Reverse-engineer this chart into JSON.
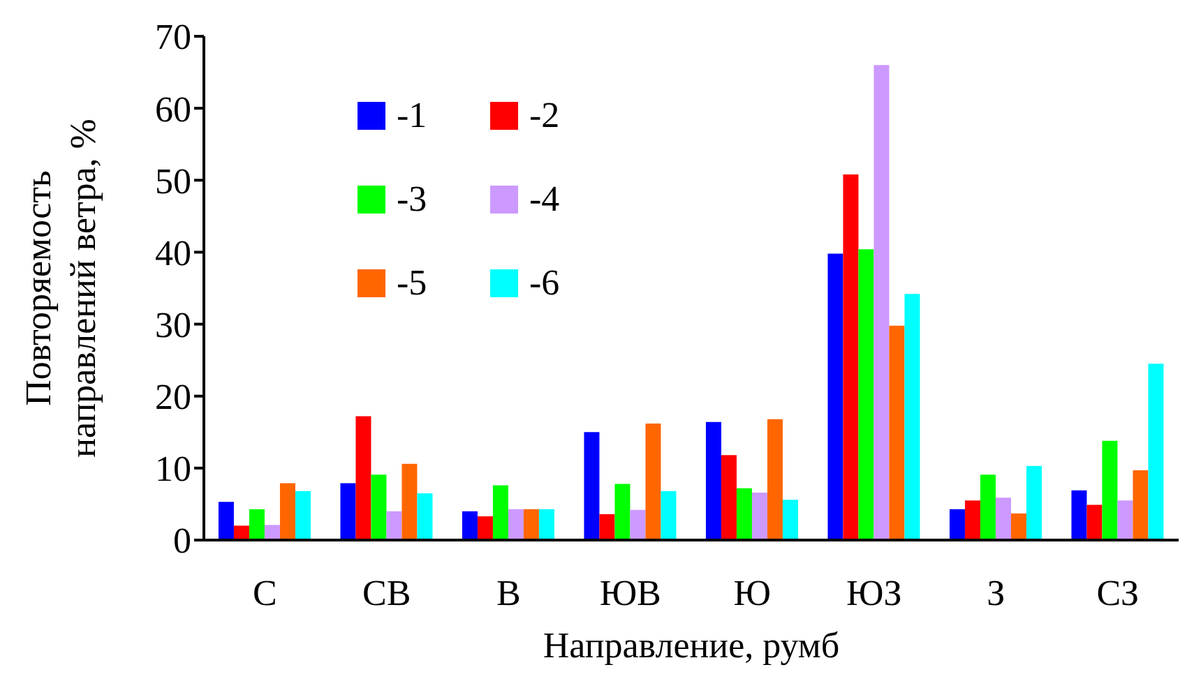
{
  "chart_data": {
    "type": "bar",
    "xlabel": "Направление, румб",
    "ylabel": "Повторяемость направлений ветра, %",
    "categories": [
      "С",
      "СВ",
      "В",
      "ЮВ",
      "Ю",
      "ЮЗ",
      "З",
      "СЗ"
    ],
    "series": [
      {
        "name": "-1",
        "color": "#0000ff",
        "values": [
          5.3,
          7.9,
          4,
          15,
          16.4,
          39.8,
          4.3,
          6.9
        ]
      },
      {
        "name": "-2",
        "color": "#ff0000",
        "values": [
          2,
          17.2,
          3.3,
          3.6,
          11.8,
          50.8,
          5.5,
          4.9
        ]
      },
      {
        "name": "-3",
        "color": "#00ff00",
        "values": [
          4.3,
          9.1,
          7.6,
          7.8,
          7.2,
          40.4,
          9.1,
          13.8
        ]
      },
      {
        "name": "-4",
        "color": "#cc99ff",
        "values": [
          2.1,
          4,
          4.3,
          4.2,
          6.6,
          66,
          5.9,
          5.5
        ]
      },
      {
        "name": "-5",
        "color": "#ff6600",
        "values": [
          7.9,
          10.6,
          4.3,
          16.2,
          16.8,
          29.8,
          3.7,
          9.7
        ]
      },
      {
        "name": "-6",
        "color": "#00ffff",
        "values": [
          6.8,
          6.5,
          4.3,
          6.8,
          5.6,
          34.2,
          10.3,
          24.5
        ]
      }
    ],
    "ylim": [
      0,
      70
    ],
    "yticks": [
      0,
      10,
      20,
      30,
      40,
      50,
      60,
      70
    ],
    "grid": false,
    "legend": "top left"
  }
}
